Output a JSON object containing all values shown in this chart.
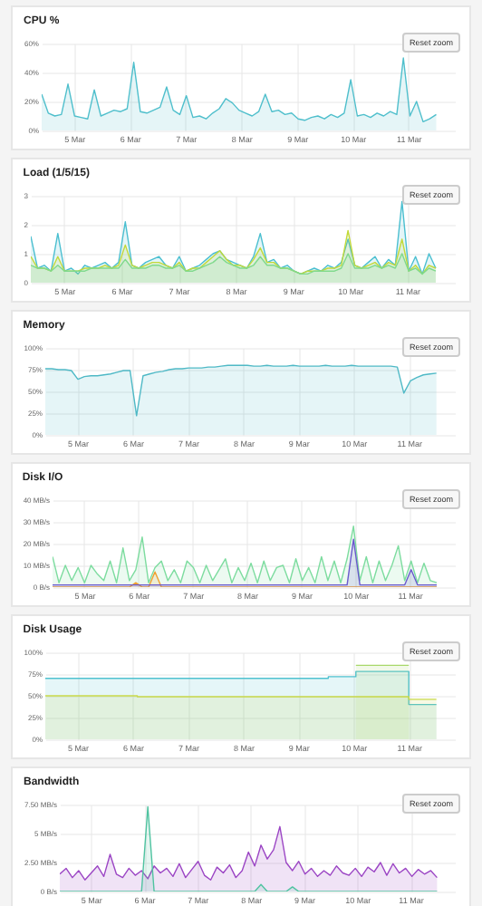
{
  "chart_data": [
    {
      "type": "area",
      "title": "CPU %",
      "annotations": [
        "Reset zoom"
      ],
      "grid": true,
      "x": [
        "--03-04T10:00",
        "--03-04T12:50",
        "--03-04T15:40",
        "--03-04T18:30",
        "--03-04T21:20",
        "--03-05T00:10",
        "--03-05T03:00",
        "--03-05T05:50",
        "--03-05T08:40",
        "--03-05T11:30",
        "--03-05T14:20",
        "--03-05T17:10",
        "--03-05T20:00",
        "--03-05T22:50",
        "--03-06T01:40",
        "--03-06T04:30",
        "--03-06T07:20",
        "--03-06T10:10",
        "--03-06T13:00",
        "--03-06T15:50",
        "--03-06T18:40",
        "--03-06T21:30",
        "--03-07T00:20",
        "--03-07T03:10",
        "--03-07T06:00",
        "--03-07T08:50",
        "--03-07T11:40",
        "--03-07T14:30",
        "--03-07T17:20",
        "--03-07T20:10",
        "--03-07T23:00",
        "--03-08T01:50",
        "--03-08T04:40",
        "--03-08T07:30",
        "--03-08T10:20",
        "--03-08T13:10",
        "--03-08T16:00",
        "--03-08T18:50",
        "--03-08T21:40",
        "--03-09T00:30",
        "--03-09T03:20",
        "--03-09T06:10",
        "--03-09T09:00",
        "--03-09T11:50",
        "--03-09T14:40",
        "--03-09T17:30",
        "--03-09T20:20",
        "--03-09T23:10",
        "--03-10T02:00",
        "--03-10T04:50",
        "--03-10T07:40",
        "--03-10T10:30",
        "--03-10T13:20",
        "--03-10T16:10",
        "--03-10T19:00",
        "--03-10T21:50",
        "--03-11T00:40",
        "--03-11T03:30",
        "--03-11T06:20",
        "--03-11T09:10",
        "--03-11T12:00"
      ],
      "xlim": [
        "--03-04T10:00",
        "--03-11T20:00"
      ],
      "xticks": [
        {
          "value": "--03-05",
          "label": "5 Mar"
        },
        {
          "value": "--03-06",
          "label": "6 Mar"
        },
        {
          "value": "--03-07",
          "label": "7 Mar"
        },
        {
          "value": "--03-08",
          "label": "8 Mar"
        },
        {
          "value": "--03-09",
          "label": "9 Mar"
        },
        {
          "value": "--03-10",
          "label": "10 Mar"
        },
        {
          "value": "--03-11",
          "label": "11 Mar"
        }
      ],
      "ylim": [
        0,
        60
      ],
      "yticks": [
        {
          "value": 0,
          "label": "0%"
        },
        {
          "value": 20,
          "label": "20%"
        },
        {
          "value": 40,
          "label": "40%"
        },
        {
          "value": 60,
          "label": "60%"
        }
      ],
      "series": [
        {
          "color": "#4fbfcc",
          "values": [
            25,
            12,
            10,
            11,
            32,
            10,
            9,
            8,
            28,
            10,
            12,
            14,
            13,
            15,
            47,
            13,
            12,
            14,
            16,
            30,
            14,
            11,
            24,
            9,
            10,
            8,
            12,
            15,
            22,
            19,
            14,
            12,
            10,
            13,
            25,
            13,
            14,
            11,
            12,
            8,
            7,
            9,
            10,
            8,
            11,
            9,
            12,
            35,
            10,
            11,
            9,
            12,
            10,
            13,
            11,
            50,
            10,
            20,
            6,
            8,
            11
          ]
        }
      ]
    },
    {
      "type": "area",
      "title": "Load (1/5/15)",
      "annotations": [
        "Reset zoom"
      ],
      "grid": true,
      "x": [
        "--03-04T10:00",
        "--03-04T12:50",
        "--03-04T15:40",
        "--03-04T18:30",
        "--03-04T21:20",
        "--03-05T00:10",
        "--03-05T03:00",
        "--03-05T05:50",
        "--03-05T08:40",
        "--03-05T11:30",
        "--03-05T14:20",
        "--03-05T17:10",
        "--03-05T20:00",
        "--03-05T22:50",
        "--03-06T01:40",
        "--03-06T04:30",
        "--03-06T07:20",
        "--03-06T10:10",
        "--03-06T13:00",
        "--03-06T15:50",
        "--03-06T18:40",
        "--03-06T21:30",
        "--03-07T00:20",
        "--03-07T03:10",
        "--03-07T06:00",
        "--03-07T08:50",
        "--03-07T11:40",
        "--03-07T14:30",
        "--03-07T17:20",
        "--03-07T20:10",
        "--03-07T23:00",
        "--03-08T01:50",
        "--03-08T04:40",
        "--03-08T07:30",
        "--03-08T10:20",
        "--03-08T13:10",
        "--03-08T16:00",
        "--03-08T18:50",
        "--03-08T21:40",
        "--03-09T00:30",
        "--03-09T03:20",
        "--03-09T06:10",
        "--03-09T09:00",
        "--03-09T11:50",
        "--03-09T14:40",
        "--03-09T17:30",
        "--03-09T20:20",
        "--03-09T23:10",
        "--03-10T02:00",
        "--03-10T04:50",
        "--03-10T07:40",
        "--03-10T10:30",
        "--03-10T13:20",
        "--03-10T16:10",
        "--03-10T19:00",
        "--03-10T21:50",
        "--03-11T00:40",
        "--03-11T03:30",
        "--03-11T06:20",
        "--03-11T09:10",
        "--03-11T12:00"
      ],
      "xlim": [
        "--03-04T10:00",
        "--03-11T20:00"
      ],
      "xticks": [
        {
          "value": "--03-05",
          "label": "5 Mar"
        },
        {
          "value": "--03-06",
          "label": "6 Mar"
        },
        {
          "value": "--03-07",
          "label": "7 Mar"
        },
        {
          "value": "--03-08",
          "label": "8 Mar"
        },
        {
          "value": "--03-09",
          "label": "9 Mar"
        },
        {
          "value": "--03-10",
          "label": "10 Mar"
        },
        {
          "value": "--03-11",
          "label": "11 Mar"
        }
      ],
      "ylim": [
        0,
        3
      ],
      "yticks": [
        0,
        1,
        2,
        3
      ],
      "series": [
        {
          "color": "#4bbfd0",
          "values": [
            1.6,
            0.5,
            0.6,
            0.4,
            1.7,
            0.4,
            0.5,
            0.3,
            0.6,
            0.5,
            0.6,
            0.7,
            0.5,
            0.7,
            2.1,
            0.6,
            0.5,
            0.7,
            0.8,
            0.9,
            0.6,
            0.5,
            0.9,
            0.4,
            0.5,
            0.6,
            0.8,
            1.0,
            1.1,
            0.8,
            0.7,
            0.6,
            0.5,
            0.9,
            1.7,
            0.7,
            0.8,
            0.5,
            0.6,
            0.4,
            0.3,
            0.4,
            0.5,
            0.4,
            0.6,
            0.5,
            0.7,
            1.5,
            0.6,
            0.5,
            0.7,
            0.9,
            0.5,
            0.8,
            0.6,
            2.8,
            0.4,
            0.9,
            0.3,
            1.0,
            0.5
          ]
        },
        {
          "color": "#c2d93a",
          "values": [
            0.9,
            0.5,
            0.5,
            0.4,
            0.9,
            0.4,
            0.4,
            0.4,
            0.5,
            0.5,
            0.5,
            0.6,
            0.5,
            0.6,
            1.3,
            0.6,
            0.5,
            0.6,
            0.7,
            0.7,
            0.6,
            0.5,
            0.7,
            0.4,
            0.5,
            0.5,
            0.7,
            0.9,
            1.1,
            0.8,
            0.6,
            0.6,
            0.5,
            0.8,
            1.2,
            0.7,
            0.7,
            0.5,
            0.5,
            0.4,
            0.3,
            0.4,
            0.4,
            0.4,
            0.5,
            0.5,
            0.6,
            1.8,
            0.6,
            0.5,
            0.6,
            0.7,
            0.5,
            0.7,
            0.6,
            1.5,
            0.4,
            0.6,
            0.3,
            0.6,
            0.5
          ]
        },
        {
          "color": "#7fd98c",
          "values": [
            0.6,
            0.5,
            0.5,
            0.4,
            0.6,
            0.4,
            0.4,
            0.4,
            0.4,
            0.5,
            0.5,
            0.5,
            0.5,
            0.5,
            0.8,
            0.5,
            0.5,
            0.5,
            0.6,
            0.6,
            0.5,
            0.5,
            0.6,
            0.4,
            0.4,
            0.5,
            0.6,
            0.7,
            0.9,
            0.7,
            0.6,
            0.5,
            0.5,
            0.6,
            0.9,
            0.6,
            0.6,
            0.5,
            0.5,
            0.4,
            0.3,
            0.3,
            0.4,
            0.4,
            0.4,
            0.4,
            0.5,
            1.0,
            0.5,
            0.5,
            0.5,
            0.6,
            0.5,
            0.6,
            0.5,
            1.0,
            0.4,
            0.5,
            0.3,
            0.5,
            0.4
          ]
        }
      ]
    },
    {
      "type": "area",
      "title": "Memory",
      "annotations": [
        "Reset zoom"
      ],
      "grid": true,
      "x": [
        "--03-04T10:00",
        "--03-04T12:50",
        "--03-04T15:40",
        "--03-04T18:30",
        "--03-04T21:20",
        "--03-05T00:10",
        "--03-05T03:00",
        "--03-05T05:50",
        "--03-05T08:40",
        "--03-05T11:30",
        "--03-05T14:20",
        "--03-05T17:10",
        "--03-05T20:00",
        "--03-05T22:50",
        "--03-06T01:40",
        "--03-06T04:30",
        "--03-06T07:20",
        "--03-06T10:10",
        "--03-06T13:00",
        "--03-06T15:50",
        "--03-06T18:40",
        "--03-06T21:30",
        "--03-07T00:20",
        "--03-07T03:10",
        "--03-07T06:00",
        "--03-07T08:50",
        "--03-07T11:40",
        "--03-07T14:30",
        "--03-07T17:20",
        "--03-07T20:10",
        "--03-07T23:00",
        "--03-08T01:50",
        "--03-08T04:40",
        "--03-08T07:30",
        "--03-08T10:20",
        "--03-08T13:10",
        "--03-08T16:00",
        "--03-08T18:50",
        "--03-08T21:40",
        "--03-09T00:30",
        "--03-09T03:20",
        "--03-09T06:10",
        "--03-09T09:00",
        "--03-09T11:50",
        "--03-09T14:40",
        "--03-09T17:30",
        "--03-09T20:20",
        "--03-09T23:10",
        "--03-10T02:00",
        "--03-10T04:50",
        "--03-10T07:40",
        "--03-10T10:30",
        "--03-10T13:20",
        "--03-10T16:10",
        "--03-10T19:00",
        "--03-10T21:50",
        "--03-11T00:40",
        "--03-11T03:30",
        "--03-11T06:20",
        "--03-11T09:10",
        "--03-11T12:00"
      ],
      "xlim": [
        "--03-04T10:00",
        "--03-11T20:00"
      ],
      "xticks": [
        {
          "value": "--03-05",
          "label": "5 Mar"
        },
        {
          "value": "--03-06",
          "label": "6 Mar"
        },
        {
          "value": "--03-07",
          "label": "7 Mar"
        },
        {
          "value": "--03-08",
          "label": "8 Mar"
        },
        {
          "value": "--03-09",
          "label": "9 Mar"
        },
        {
          "value": "--03-10",
          "label": "10 Mar"
        },
        {
          "value": "--03-11",
          "label": "11 Mar"
        }
      ],
      "ylim": [
        0,
        100
      ],
      "yticks": [
        {
          "value": 0,
          "label": "0%"
        },
        {
          "value": 25,
          "label": "25%"
        },
        {
          "value": 50,
          "label": "50%"
        },
        {
          "value": 75,
          "label": "75%"
        },
        {
          "value": 100,
          "label": "100%"
        }
      ],
      "series": [
        {
          "color": "#4fb9c6",
          "values": [
            76,
            76,
            75,
            75,
            74,
            64,
            67,
            68,
            68,
            69,
            70,
            72,
            74,
            74,
            22,
            68,
            70,
            72,
            73,
            75,
            76,
            76,
            77,
            77,
            77,
            78,
            78,
            79,
            80,
            80,
            80,
            80,
            79,
            79,
            80,
            79,
            79,
            79,
            80,
            79,
            79,
            79,
            79,
            80,
            79,
            79,
            79,
            80,
            79,
            79,
            79,
            79,
            79,
            79,
            78,
            48,
            62,
            66,
            69,
            70,
            71
          ]
        }
      ]
    },
    {
      "type": "area",
      "title": "Disk I/O",
      "annotations": [
        "Reset zoom"
      ],
      "grid": true,
      "x": [
        "--03-04T10:00",
        "--03-04T12:50",
        "--03-04T15:40",
        "--03-04T18:30",
        "--03-04T21:20",
        "--03-05T00:10",
        "--03-05T03:00",
        "--03-05T05:50",
        "--03-05T08:40",
        "--03-05T11:30",
        "--03-05T14:20",
        "--03-05T17:10",
        "--03-05T20:00",
        "--03-05T22:50",
        "--03-06T01:40",
        "--03-06T04:30",
        "--03-06T07:20",
        "--03-06T10:10",
        "--03-06T13:00",
        "--03-06T15:50",
        "--03-06T18:40",
        "--03-06T21:30",
        "--03-07T00:20",
        "--03-07T03:10",
        "--03-07T06:00",
        "--03-07T08:50",
        "--03-07T11:40",
        "--03-07T14:30",
        "--03-07T17:20",
        "--03-07T20:10",
        "--03-07T23:00",
        "--03-08T01:50",
        "--03-08T04:40",
        "--03-08T07:30",
        "--03-08T10:20",
        "--03-08T13:10",
        "--03-08T16:00",
        "--03-08T18:50",
        "--03-08T21:40",
        "--03-09T00:30",
        "--03-09T03:20",
        "--03-09T06:10",
        "--03-09T09:00",
        "--03-09T11:50",
        "--03-09T14:40",
        "--03-09T17:30",
        "--03-09T20:20",
        "--03-09T23:10",
        "--03-10T02:00",
        "--03-10T04:50",
        "--03-10T07:40",
        "--03-10T10:30",
        "--03-10T13:20",
        "--03-10T16:10",
        "--03-10T19:00",
        "--03-10T21:50",
        "--03-11T00:40",
        "--03-11T03:30",
        "--03-11T06:20",
        "--03-11T09:10",
        "--03-11T12:00"
      ],
      "xlim": [
        "--03-04T10:00",
        "--03-11T20:00"
      ],
      "xticks": [
        {
          "value": "--03-05",
          "label": "5 Mar"
        },
        {
          "value": "--03-06",
          "label": "6 Mar"
        },
        {
          "value": "--03-07",
          "label": "7 Mar"
        },
        {
          "value": "--03-08",
          "label": "8 Mar"
        },
        {
          "value": "--03-09",
          "label": "9 Mar"
        },
        {
          "value": "--03-10",
          "label": "10 Mar"
        },
        {
          "value": "--03-11",
          "label": "11 Mar"
        }
      ],
      "ylim": [
        0,
        40
      ],
      "yticks": [
        {
          "value": 0,
          "label": "0 B/s"
        },
        {
          "value": 10,
          "label": "10 MB/s"
        },
        {
          "value": 20,
          "label": "20 MB/s"
        },
        {
          "value": 30,
          "label": "30 MB/s"
        },
        {
          "value": 40,
          "label": "40 MB/s"
        }
      ],
      "series": [
        {
          "color": "#7ddc9f",
          "values": [
            14,
            2,
            10,
            3,
            9,
            2,
            10,
            6,
            3,
            12,
            2,
            18,
            3,
            8,
            23,
            2,
            9,
            12,
            3,
            8,
            2,
            12,
            9,
            2,
            10,
            3,
            8,
            13,
            2,
            9,
            3,
            11,
            2,
            12,
            3,
            9,
            10,
            2,
            13,
            3,
            9,
            2,
            14,
            3,
            12,
            2,
            13,
            28,
            3,
            14,
            2,
            12,
            3,
            10,
            19,
            3,
            12,
            2,
            11,
            3,
            2
          ]
        },
        {
          "color": "#f0a030",
          "values": [
            0,
            0,
            0,
            0,
            0,
            0,
            0,
            0,
            0,
            0,
            0,
            0,
            0,
            2,
            0,
            0,
            7,
            0,
            0,
            0,
            0,
            0,
            0,
            0,
            0,
            0,
            0,
            0,
            0,
            0,
            0,
            0,
            0,
            0,
            0,
            0,
            0,
            0,
            0,
            0,
            0,
            0,
            0,
            0,
            0,
            0,
            0,
            0,
            0,
            0,
            0,
            0,
            0,
            0,
            0,
            0,
            0,
            0,
            0,
            0,
            0
          ]
        },
        {
          "color": "#6a5acd",
          "values": [
            1,
            1,
            1,
            1,
            1,
            1,
            1,
            1,
            1,
            1,
            1,
            1,
            1,
            1,
            1,
            1,
            1,
            1,
            1,
            1,
            1,
            1,
            1,
            1,
            1,
            1,
            1,
            1,
            1,
            1,
            1,
            1,
            1,
            1,
            1,
            1,
            1,
            1,
            1,
            1,
            1,
            1,
            1,
            1,
            1,
            1,
            1,
            22,
            1,
            1,
            1,
            1,
            1,
            1,
            1,
            1,
            8,
            1,
            1,
            1,
            1
          ]
        }
      ]
    },
    {
      "type": "area",
      "title": "Disk Usage",
      "annotations": [
        "Reset zoom"
      ],
      "grid": true,
      "xlim": [
        "--03-04T10:00",
        "--03-11T20:00"
      ],
      "xticks": [
        {
          "value": "--03-05",
          "label": "5 Mar"
        },
        {
          "value": "--03-06",
          "label": "6 Mar"
        },
        {
          "value": "--03-07",
          "label": "7 Mar"
        },
        {
          "value": "--03-08",
          "label": "8 Mar"
        },
        {
          "value": "--03-09",
          "label": "9 Mar"
        },
        {
          "value": "--03-10",
          "label": "10 Mar"
        },
        {
          "value": "--03-11",
          "label": "11 Mar"
        }
      ],
      "ylim": [
        0,
        100
      ],
      "yticks": [
        {
          "value": 0,
          "label": "0%"
        },
        {
          "value": 25,
          "label": "25%"
        },
        {
          "value": 50,
          "label": "50%"
        },
        {
          "value": 75,
          "label": "75%"
        },
        {
          "value": 100,
          "label": "100%"
        }
      ],
      "series": [
        {
          "color": "#4fc1cf",
          "x": [
            "--03-04T10:00",
            "--03-09T13:00",
            "--03-09T13:00",
            "--03-10T01:00",
            "--03-10T01:00",
            "--03-11T00:00",
            "--03-11T00:00",
            "--03-11T12:00"
          ],
          "values": [
            70,
            70,
            72,
            72,
            78,
            78,
            40,
            40
          ]
        },
        {
          "color": "#a8d86a",
          "x": [
            "--03-10T01:00",
            "--03-11T00:00"
          ],
          "values": [
            85,
            85
          ]
        },
        {
          "color": "#c9d94a",
          "x": [
            "--03-04T10:00",
            "--03-06T02:00",
            "--03-06T02:00",
            "--03-11T00:00",
            "--03-11T00:00",
            "--03-11T12:00"
          ],
          "values": [
            50,
            50,
            49,
            49,
            46,
            46
          ]
        }
      ]
    },
    {
      "type": "area",
      "title": "Bandwidth",
      "annotations": [
        "Reset zoom"
      ],
      "grid": true,
      "x": [
        "--03-04T10:00",
        "--03-04T12:50",
        "--03-04T15:40",
        "--03-04T18:30",
        "--03-04T21:20",
        "--03-05T00:10",
        "--03-05T03:00",
        "--03-05T05:50",
        "--03-05T08:40",
        "--03-05T11:30",
        "--03-05T14:20",
        "--03-05T17:10",
        "--03-05T20:00",
        "--03-05T22:50",
        "--03-06T01:40",
        "--03-06T04:30",
        "--03-06T07:20",
        "--03-06T10:10",
        "--03-06T13:00",
        "--03-06T15:50",
        "--03-06T18:40",
        "--03-06T21:30",
        "--03-07T00:20",
        "--03-07T03:10",
        "--03-07T06:00",
        "--03-07T08:50",
        "--03-07T11:40",
        "--03-07T14:30",
        "--03-07T17:20",
        "--03-07T20:10",
        "--03-07T23:00",
        "--03-08T01:50",
        "--03-08T04:40",
        "--03-08T07:30",
        "--03-08T10:20",
        "--03-08T13:10",
        "--03-08T16:00",
        "--03-08T18:50",
        "--03-08T21:40",
        "--03-09T00:30",
        "--03-09T03:20",
        "--03-09T06:10",
        "--03-09T09:00",
        "--03-09T11:50",
        "--03-09T14:40",
        "--03-09T17:30",
        "--03-09T20:20",
        "--03-09T23:10",
        "--03-10T02:00",
        "--03-10T04:50",
        "--03-10T07:40",
        "--03-10T10:30",
        "--03-10T13:20",
        "--03-10T16:10",
        "--03-10T19:00",
        "--03-10T21:50",
        "--03-11T00:40",
        "--03-11T03:30",
        "--03-11T06:20",
        "--03-11T09:10",
        "--03-11T12:00"
      ],
      "xlim": [
        "--03-04T10:00",
        "--03-11T20:00"
      ],
      "xticks": [
        {
          "value": "--03-05",
          "label": "5 Mar"
        },
        {
          "value": "--03-06",
          "label": "6 Mar"
        },
        {
          "value": "--03-07",
          "label": "7 Mar"
        },
        {
          "value": "--03-08",
          "label": "8 Mar"
        },
        {
          "value": "--03-09",
          "label": "9 Mar"
        },
        {
          "value": "--03-10",
          "label": "10 Mar"
        },
        {
          "value": "--03-11",
          "label": "11 Mar"
        }
      ],
      "ylim": [
        0,
        7.5
      ],
      "yticks": [
        {
          "value": 0,
          "label": "0 B/s"
        },
        {
          "value": 2.5,
          "label": "2.50 MB/s"
        },
        {
          "value": 5,
          "label": "5 MB/s"
        },
        {
          "value": 7.5,
          "label": "7.50 MB/s"
        }
      ],
      "series": [
        {
          "color": "#9b45c4",
          "values": [
            1.5,
            2.0,
            1.2,
            1.8,
            1.0,
            1.6,
            2.2,
            1.3,
            3.2,
            1.5,
            1.2,
            2.0,
            1.4,
            1.8,
            1.1,
            2.2,
            1.6,
            2.0,
            1.3,
            2.4,
            1.2,
            1.9,
            2.6,
            1.4,
            1.0,
            2.1,
            1.6,
            2.3,
            1.2,
            1.8,
            3.4,
            2.2,
            4.0,
            2.8,
            3.6,
            5.6,
            2.5,
            1.8,
            2.6,
            1.5,
            2.0,
            1.3,
            1.8,
            1.4,
            2.2,
            1.6,
            1.4,
            2.0,
            1.3,
            2.1,
            1.7,
            2.5,
            1.4,
            2.4,
            1.6,
            2.0,
            1.3,
            1.9,
            1.5,
            1.8,
            1.2
          ]
        },
        {
          "color": "#4fc3a0",
          "values": [
            0,
            0,
            0,
            0,
            0,
            0,
            0,
            0,
            0,
            0,
            0,
            0,
            0,
            0,
            7.3,
            0,
            0,
            0,
            0,
            0,
            0,
            0,
            0,
            0,
            0,
            0,
            0,
            0,
            0,
            0,
            0,
            0,
            0.6,
            0,
            0,
            0,
            0,
            0.4,
            0,
            0,
            0,
            0,
            0,
            0,
            0,
            0,
            0,
            0,
            0,
            0,
            0,
            0,
            0,
            0,
            0,
            0,
            0,
            0,
            0,
            0,
            0
          ]
        }
      ]
    }
  ]
}
